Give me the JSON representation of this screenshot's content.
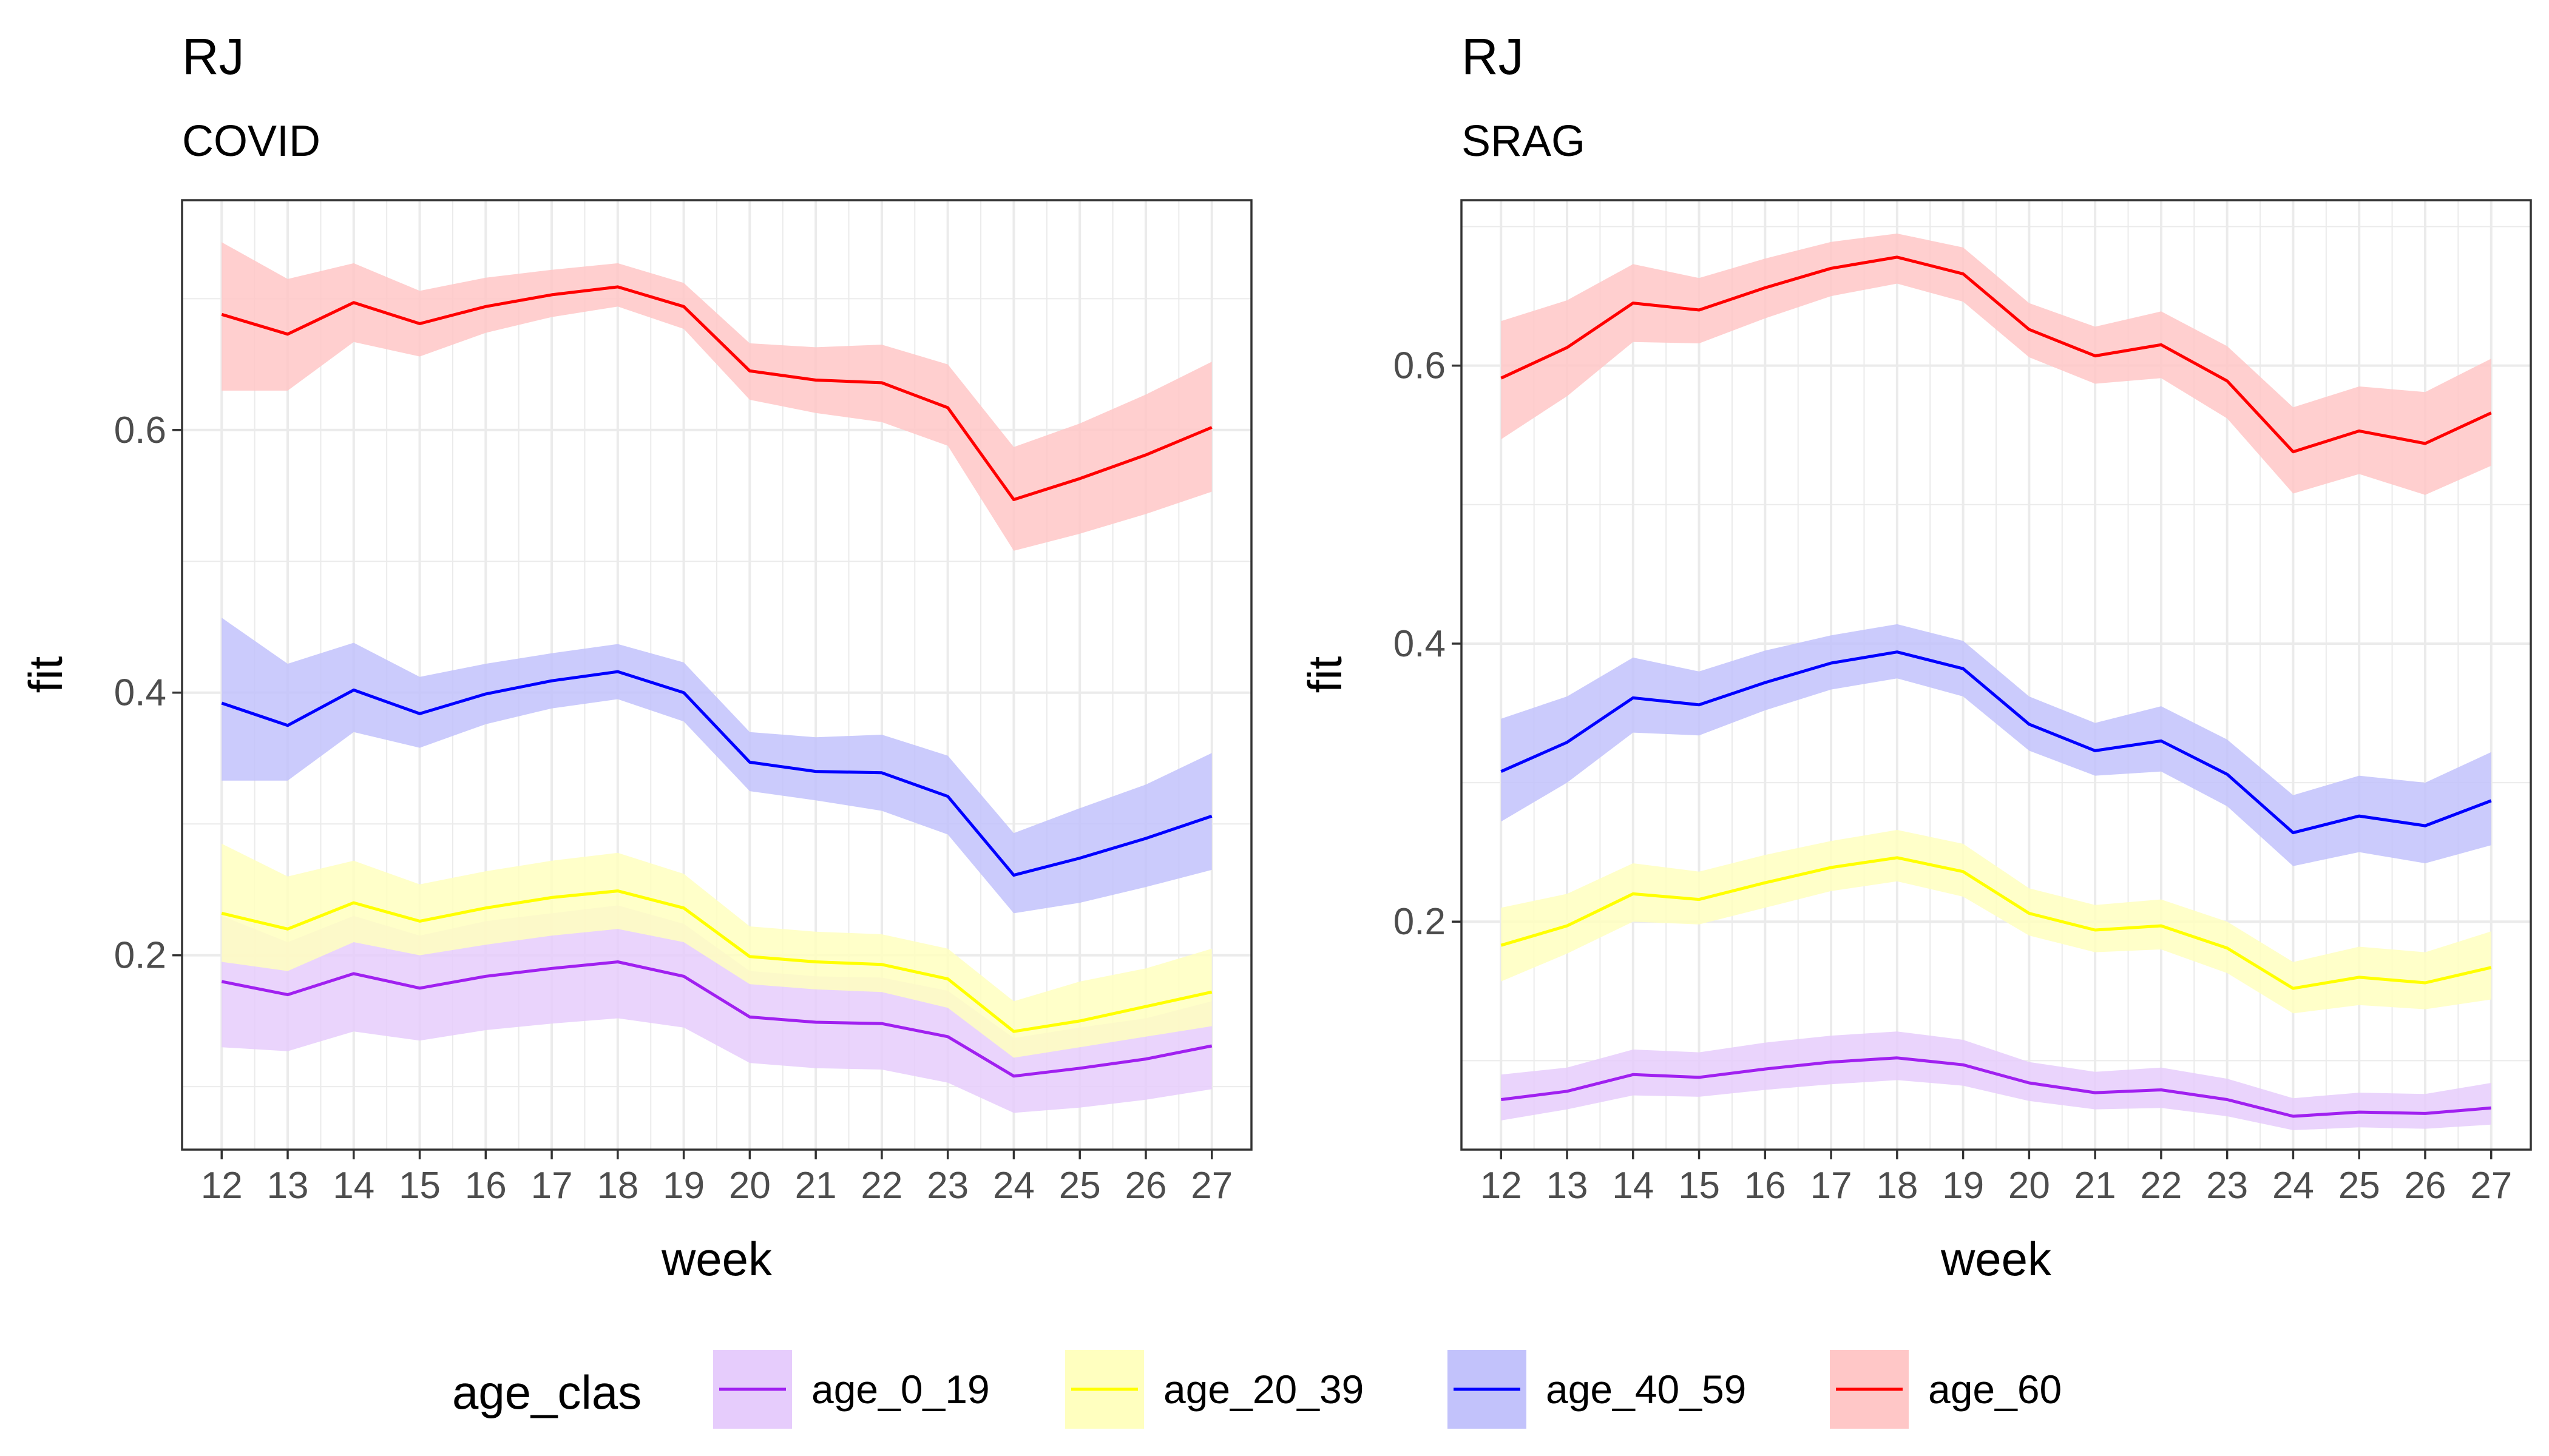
{
  "chart_data": [
    {
      "type": "line",
      "title": "RJ",
      "subtitle": "COVID",
      "xlabel": "week",
      "ylabel": "fit",
      "x": [
        12,
        13,
        14,
        15,
        16,
        17,
        18,
        19,
        20,
        21,
        22,
        23,
        24,
        25,
        26,
        27
      ],
      "xlim": [
        11.4,
        27.6
      ],
      "ylim": [
        0.052,
        0.775
      ],
      "y_ticks": [
        0.2,
        0.4,
        0.6
      ],
      "y_tick_labels": [
        "0.2",
        "0.4",
        "0.6"
      ],
      "y_minor_ticks": [
        0.1,
        0.3,
        0.5,
        0.7
      ],
      "grid": true,
      "series": [
        {
          "name": "age_0_19",
          "color": "#a020f0",
          "fill": "#e6ccfc",
          "values": [
            0.18,
            0.17,
            0.186,
            0.175,
            0.184,
            0.19,
            0.195,
            0.184,
            0.153,
            0.149,
            0.148,
            0.138,
            0.108,
            0.114,
            0.121,
            0.131
          ],
          "lower": [
            0.13,
            0.127,
            0.142,
            0.135,
            0.143,
            0.148,
            0.152,
            0.145,
            0.118,
            0.114,
            0.113,
            0.103,
            0.08,
            0.084,
            0.09,
            0.098
          ],
          "upper": [
            0.23,
            0.21,
            0.23,
            0.215,
            0.226,
            0.232,
            0.238,
            0.224,
            0.188,
            0.184,
            0.183,
            0.173,
            0.137,
            0.145,
            0.152,
            0.165
          ]
        },
        {
          "name": "age_20_39",
          "color": "#ffff00",
          "fill": "#ffffbf",
          "values": [
            0.232,
            0.22,
            0.24,
            0.226,
            0.236,
            0.244,
            0.249,
            0.236,
            0.199,
            0.195,
            0.193,
            0.182,
            0.142,
            0.15,
            0.161,
            0.172
          ],
          "lower": [
            0.195,
            0.188,
            0.21,
            0.2,
            0.208,
            0.215,
            0.22,
            0.21,
            0.178,
            0.174,
            0.172,
            0.16,
            0.122,
            0.13,
            0.138,
            0.146
          ],
          "upper": [
            0.285,
            0.26,
            0.272,
            0.254,
            0.264,
            0.272,
            0.278,
            0.262,
            0.222,
            0.218,
            0.216,
            0.205,
            0.165,
            0.18,
            0.19,
            0.205
          ]
        },
        {
          "name": "age_40_59",
          "color": "#0000ff",
          "fill": "#c2c2fb",
          "values": [
            0.392,
            0.375,
            0.402,
            0.384,
            0.399,
            0.409,
            0.416,
            0.4,
            0.347,
            0.34,
            0.339,
            0.321,
            0.261,
            0.274,
            0.289,
            0.306
          ],
          "lower": [
            0.333,
            0.333,
            0.37,
            0.358,
            0.376,
            0.388,
            0.395,
            0.378,
            0.325,
            0.318,
            0.31,
            0.292,
            0.232,
            0.24,
            0.252,
            0.265
          ],
          "upper": [
            0.457,
            0.422,
            0.438,
            0.412,
            0.422,
            0.43,
            0.437,
            0.423,
            0.37,
            0.366,
            0.368,
            0.352,
            0.293,
            0.312,
            0.33,
            0.354
          ]
        },
        {
          "name": "age_60",
          "color": "#ff0000",
          "fill": "#ffc7c7",
          "values": [
            0.688,
            0.673,
            0.697,
            0.681,
            0.694,
            0.703,
            0.709,
            0.694,
            0.645,
            0.638,
            0.636,
            0.617,
            0.547,
            0.563,
            0.581,
            0.602
          ],
          "lower": [
            0.63,
            0.63,
            0.667,
            0.656,
            0.674,
            0.686,
            0.694,
            0.677,
            0.623,
            0.613,
            0.606,
            0.588,
            0.508,
            0.521,
            0.536,
            0.553
          ],
          "upper": [
            0.743,
            0.715,
            0.727,
            0.706,
            0.716,
            0.722,
            0.727,
            0.712,
            0.666,
            0.663,
            0.665,
            0.65,
            0.587,
            0.605,
            0.627,
            0.652
          ]
        }
      ]
    },
    {
      "type": "line",
      "title": "RJ",
      "subtitle": "SRAG",
      "xlabel": "week",
      "ylabel": "fit",
      "x": [
        12,
        13,
        14,
        15,
        16,
        17,
        18,
        19,
        20,
        21,
        22,
        23,
        24,
        25,
        26,
        27
      ],
      "xlim": [
        11.4,
        27.6
      ],
      "ylim": [
        0.036,
        0.719
      ],
      "y_ticks": [
        0.2,
        0.4,
        0.6
      ],
      "y_tick_labels": [
        "0.2",
        "0.4",
        "0.6"
      ],
      "y_minor_ticks": [
        0.1,
        0.3,
        0.5,
        0.7
      ],
      "grid": true,
      "series": [
        {
          "name": "age_0_19",
          "color": "#a020f0",
          "fill": "#e6ccfc",
          "values": [
            0.072,
            0.078,
            0.09,
            0.088,
            0.094,
            0.099,
            0.102,
            0.097,
            0.084,
            0.077,
            0.079,
            0.072,
            0.06,
            0.063,
            0.062,
            0.066
          ],
          "lower": [
            0.057,
            0.065,
            0.075,
            0.074,
            0.079,
            0.083,
            0.086,
            0.082,
            0.071,
            0.065,
            0.066,
            0.06,
            0.05,
            0.052,
            0.051,
            0.054
          ],
          "upper": [
            0.09,
            0.095,
            0.108,
            0.106,
            0.113,
            0.118,
            0.121,
            0.115,
            0.099,
            0.092,
            0.095,
            0.087,
            0.073,
            0.077,
            0.076,
            0.084
          ]
        },
        {
          "name": "age_20_39",
          "color": "#ffff00",
          "fill": "#ffffbf",
          "values": [
            0.183,
            0.197,
            0.22,
            0.216,
            0.228,
            0.239,
            0.246,
            0.236,
            0.206,
            0.194,
            0.197,
            0.181,
            0.152,
            0.16,
            0.156,
            0.167
          ],
          "lower": [
            0.157,
            0.177,
            0.2,
            0.198,
            0.21,
            0.222,
            0.229,
            0.218,
            0.19,
            0.178,
            0.18,
            0.163,
            0.134,
            0.14,
            0.137,
            0.144
          ],
          "upper": [
            0.21,
            0.22,
            0.242,
            0.236,
            0.248,
            0.258,
            0.266,
            0.256,
            0.224,
            0.212,
            0.216,
            0.2,
            0.171,
            0.182,
            0.178,
            0.193
          ]
        },
        {
          "name": "age_40_59",
          "color": "#0000ff",
          "fill": "#c2c2fb",
          "values": [
            0.308,
            0.329,
            0.361,
            0.356,
            0.372,
            0.386,
            0.394,
            0.382,
            0.342,
            0.323,
            0.33,
            0.306,
            0.264,
            0.276,
            0.269,
            0.287
          ],
          "lower": [
            0.272,
            0.3,
            0.336,
            0.334,
            0.352,
            0.367,
            0.375,
            0.362,
            0.323,
            0.305,
            0.308,
            0.283,
            0.24,
            0.25,
            0.242,
            0.255
          ],
          "upper": [
            0.346,
            0.362,
            0.39,
            0.38,
            0.395,
            0.406,
            0.414,
            0.402,
            0.362,
            0.343,
            0.355,
            0.331,
            0.291,
            0.305,
            0.3,
            0.322
          ]
        },
        {
          "name": "age_60",
          "color": "#ff0000",
          "fill": "#ffc7c7",
          "values": [
            0.591,
            0.613,
            0.645,
            0.64,
            0.656,
            0.67,
            0.678,
            0.666,
            0.626,
            0.607,
            0.615,
            0.589,
            0.538,
            0.553,
            0.544,
            0.566
          ],
          "lower": [
            0.547,
            0.578,
            0.617,
            0.616,
            0.634,
            0.65,
            0.659,
            0.646,
            0.606,
            0.587,
            0.591,
            0.562,
            0.508,
            0.522,
            0.507,
            0.528
          ],
          "upper": [
            0.632,
            0.647,
            0.673,
            0.663,
            0.677,
            0.689,
            0.695,
            0.685,
            0.645,
            0.628,
            0.639,
            0.614,
            0.57,
            0.585,
            0.581,
            0.605
          ]
        }
      ]
    }
  ],
  "legend": {
    "title": "age_clas",
    "placement": "bottom",
    "items": [
      {
        "label": "age_0_19",
        "color": "#a020f0",
        "fill": "#e6ccfc"
      },
      {
        "label": "age_20_39",
        "color": "#ffff00",
        "fill": "#ffffbf"
      },
      {
        "label": "age_40_59",
        "color": "#0000ff",
        "fill": "#c2c2fb"
      },
      {
        "label": "age_60",
        "color": "#ff0000",
        "fill": "#ffc7c7"
      }
    ]
  }
}
